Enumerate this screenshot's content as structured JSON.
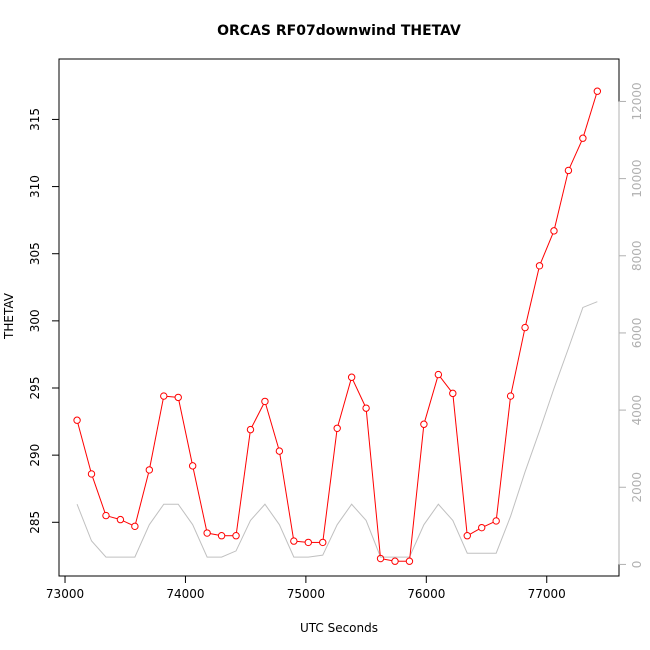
{
  "chart_data": {
    "type": "line",
    "title": "ORCAS RF07downwind THETAV",
    "xlabel": "UTC Seconds",
    "ylabel": "THETAV",
    "xlim": [
      72950,
      77600
    ],
    "ylim": [
      281.0,
      319.5
    ],
    "y2lim": [
      -300,
      13100
    ],
    "x_ticks": [
      73000,
      74000,
      75000,
      76000,
      77000
    ],
    "y_ticks": [
      285,
      290,
      295,
      300,
      305,
      310,
      315
    ],
    "y2_ticks": [
      0,
      2000,
      4000,
      6000,
      8000,
      10000,
      12000
    ],
    "grid": false,
    "series": [
      {
        "axis": "left",
        "color": "#ff0000",
        "style": "line+points",
        "x": [
          73100,
          73220,
          73340,
          73460,
          73580,
          73700,
          73820,
          73940,
          74060,
          74180,
          74300,
          74420,
          74540,
          74660,
          74780,
          74900,
          75020,
          75140,
          75260,
          75380,
          75500,
          75620,
          75740,
          75860,
          75980,
          76100,
          76220,
          76340,
          76460,
          76580,
          76700,
          76820,
          76940,
          77060,
          77180,
          77300,
          77420
        ],
        "y": [
          292.6,
          288.6,
          285.5,
          285.2,
          284.7,
          288.9,
          294.4,
          294.3,
          289.2,
          284.2,
          284.0,
          284.0,
          291.9,
          294.0,
          290.3,
          283.6,
          283.5,
          283.5,
          292.0,
          295.8,
          293.5,
          282.3,
          282.1,
          282.1,
          292.3,
          296.0,
          294.6,
          284.0,
          284.6,
          285.1,
          294.4,
          299.5,
          304.1,
          306.7,
          311.2,
          313.6,
          317.1
        ]
      },
      {
        "axis": "right",
        "color": "#c0c0c0",
        "style": "line",
        "x": [
          73100,
          73220,
          73340,
          73460,
          73580,
          73700,
          73820,
          73940,
          74060,
          74180,
          74300,
          74420,
          74540,
          74660,
          74780,
          74900,
          75020,
          75140,
          75260,
          75380,
          75500,
          75620,
          75740,
          75860,
          75980,
          76100,
          76220,
          76340,
          76460,
          76580,
          76700,
          76820,
          76940,
          77060,
          77180,
          77300,
          77420
        ],
        "y": [
          1560,
          610,
          190,
          190,
          190,
          1030,
          1560,
          1560,
          1030,
          190,
          190,
          350,
          1140,
          1560,
          1030,
          190,
          190,
          240,
          1030,
          1560,
          1140,
          190,
          190,
          190,
          1030,
          1560,
          1140,
          290,
          290,
          290,
          1250,
          2400,
          3460,
          4560,
          5600,
          6660,
          6810
        ]
      }
    ]
  }
}
